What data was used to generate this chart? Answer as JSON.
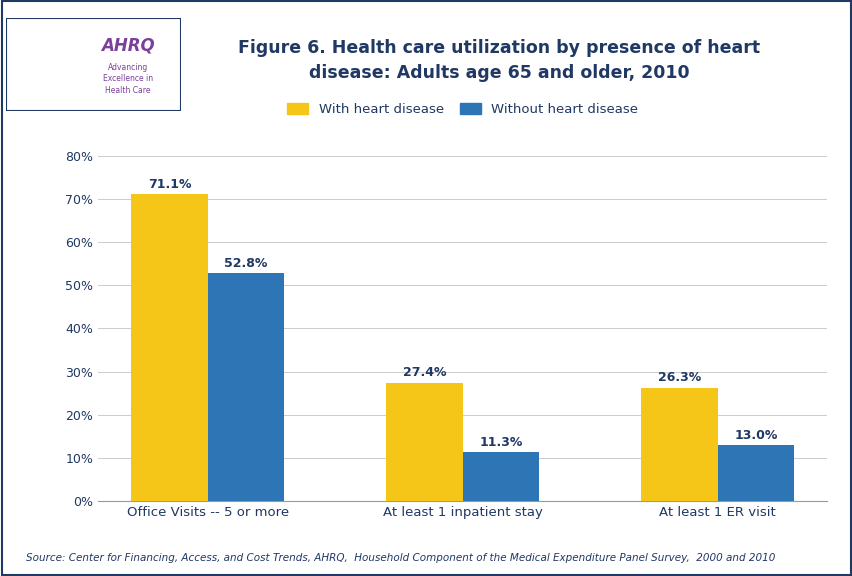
{
  "title": "Figure 6. Health care utilization by presence of heart\ndisease: Adults age 65 and older, 2010",
  "categories": [
    "Office Visits -- 5 or more",
    "At least 1 inpatient stay",
    "At least 1 ER visit"
  ],
  "series1_label": "With heart disease",
  "series2_label": "Without heart disease",
  "series1_values": [
    71.1,
    27.4,
    26.3
  ],
  "series2_values": [
    52.8,
    11.3,
    13.0
  ],
  "series1_labels": [
    "71.1%",
    "27.4%",
    "26.3%"
  ],
  "series2_labels": [
    "52.8%",
    "11.3%",
    "13.0%"
  ],
  "series1_color": "#F5C518",
  "series2_color": "#2E75B6",
  "ylim": [
    0,
    80
  ],
  "yticks": [
    0,
    10,
    20,
    30,
    40,
    50,
    60,
    70,
    80
  ],
  "ytick_labels": [
    "0%",
    "10%",
    "20%",
    "30%",
    "40%",
    "50%",
    "60%",
    "70%",
    "80%"
  ],
  "title_color": "#1F3864",
  "title_fontsize": 12.5,
  "axis_label_color": "#1F3864",
  "bar_label_color": "#1F3864",
  "legend_label_color": "#1F3864",
  "source_text": "Source: Center for Financing, Access, and Cost Trends, AHRQ,  Household Component of the Medical Expenditure Panel Survey,  2000 and 2010",
  "background_color": "#FFFFFF",
  "separator_color": "#0A0AA0",
  "bar_width": 0.3,
  "logo_bg_color": "#2E86C1",
  "logo_text_color": "#FFFFFF",
  "ahrq_purple": "#7B3F9C",
  "ahrq_text_color": "#4A4A8C",
  "border_color": "#1F3864"
}
